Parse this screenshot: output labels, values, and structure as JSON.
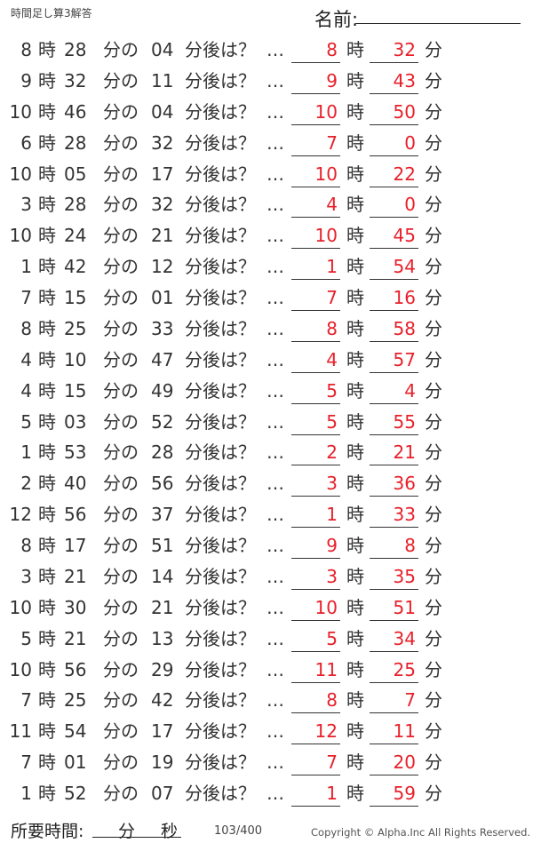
{
  "header": {
    "title": "時間足し算3解答",
    "name_label": "名前:"
  },
  "labels": {
    "hour": "時",
    "minute_of": "分の",
    "minutes_later": "分後は？",
    "ellipsis": "…",
    "ans_hour": "時",
    "ans_minute": "分"
  },
  "colors": {
    "answer": "#e8202a"
  },
  "problems": [
    {
      "h": "8",
      "m": "28",
      "add": "04",
      "ah": "8",
      "am": "32"
    },
    {
      "h": "9",
      "m": "32",
      "add": "11",
      "ah": "9",
      "am": "43"
    },
    {
      "h": "10",
      "m": "46",
      "add": "04",
      "ah": "10",
      "am": "50"
    },
    {
      "h": "6",
      "m": "28",
      "add": "32",
      "ah": "7",
      "am": "0"
    },
    {
      "h": "10",
      "m": "05",
      "add": "17",
      "ah": "10",
      "am": "22"
    },
    {
      "h": "3",
      "m": "28",
      "add": "32",
      "ah": "4",
      "am": "0"
    },
    {
      "h": "10",
      "m": "24",
      "add": "21",
      "ah": "10",
      "am": "45"
    },
    {
      "h": "1",
      "m": "42",
      "add": "12",
      "ah": "1",
      "am": "54"
    },
    {
      "h": "7",
      "m": "15",
      "add": "01",
      "ah": "7",
      "am": "16"
    },
    {
      "h": "8",
      "m": "25",
      "add": "33",
      "ah": "8",
      "am": "58"
    },
    {
      "h": "4",
      "m": "10",
      "add": "47",
      "ah": "4",
      "am": "57"
    },
    {
      "h": "4",
      "m": "15",
      "add": "49",
      "ah": "5",
      "am": "4"
    },
    {
      "h": "5",
      "m": "03",
      "add": "52",
      "ah": "5",
      "am": "55"
    },
    {
      "h": "1",
      "m": "53",
      "add": "28",
      "ah": "2",
      "am": "21"
    },
    {
      "h": "2",
      "m": "40",
      "add": "56",
      "ah": "3",
      "am": "36"
    },
    {
      "h": "12",
      "m": "56",
      "add": "37",
      "ah": "1",
      "am": "33"
    },
    {
      "h": "8",
      "m": "17",
      "add": "51",
      "ah": "9",
      "am": "8"
    },
    {
      "h": "3",
      "m": "21",
      "add": "14",
      "ah": "3",
      "am": "35"
    },
    {
      "h": "10",
      "m": "30",
      "add": "21",
      "ah": "10",
      "am": "51"
    },
    {
      "h": "5",
      "m": "21",
      "add": "13",
      "ah": "5",
      "am": "34"
    },
    {
      "h": "10",
      "m": "56",
      "add": "29",
      "ah": "11",
      "am": "25"
    },
    {
      "h": "7",
      "m": "25",
      "add": "42",
      "ah": "8",
      "am": "7"
    },
    {
      "h": "11",
      "m": "54",
      "add": "17",
      "ah": "12",
      "am": "11"
    },
    {
      "h": "7",
      "m": "01",
      "add": "19",
      "ah": "7",
      "am": "20"
    },
    {
      "h": "1",
      "m": "52",
      "add": "07",
      "ah": "1",
      "am": "59"
    }
  ],
  "footer": {
    "time_label": "所要時間:",
    "minute": "分",
    "second": "秒",
    "page": "103/400",
    "copyright": "Copyright ©  Alpha.Inc All Rights Reserved."
  }
}
